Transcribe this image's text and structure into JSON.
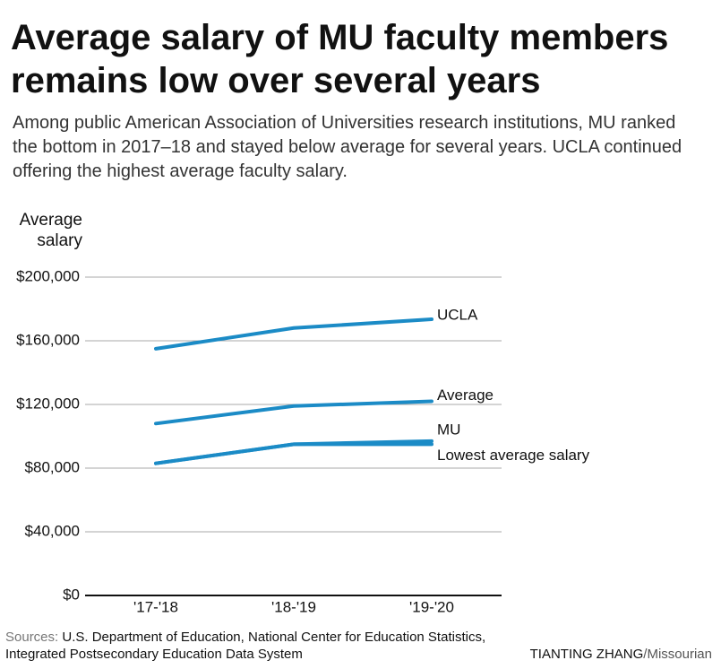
{
  "chart_data": {
    "type": "line",
    "title": "Average salary of MU faculty members remains low over several years",
    "subtitle": "Among public American Association of Universities research institutions, MU ranked the bottom in 2017–18 and stayed below average for several years. UCLA continued offering the highest average faculty salary.",
    "y_label": "Average salary",
    "categories": [
      "'17-'18",
      "'18-'19",
      "'19-'20"
    ],
    "series": [
      {
        "name": "UCLA",
        "color": "#1b8bc6",
        "values": [
          155000,
          168000,
          173500
        ]
      },
      {
        "name": "Average",
        "color": "#1b8bc6",
        "values": [
          108000,
          119000,
          122000
        ]
      },
      {
        "name": "MU",
        "color": "#1b8bc6",
        "values": [
          83000,
          95000,
          97000
        ]
      },
      {
        "name": "Lowest average salary",
        "color": "#1b8bc6",
        "values": [
          83000,
          95000,
          95000
        ]
      }
    ],
    "ylim": [
      0,
      200000
    ],
    "yticks": [
      {
        "value": 0,
        "label": "$0"
      },
      {
        "value": 40000,
        "label": "$40,000"
      },
      {
        "value": 80000,
        "label": "$80,000"
      },
      {
        "value": 120000,
        "label": "$120,000"
      },
      {
        "value": 160000,
        "label": "$160,000"
      },
      {
        "value": 200000,
        "label": "$200,000"
      }
    ],
    "grid": true,
    "source_label": "Sources:",
    "source": "U.S. Department of Education, National Center for Education Statistics, Integrated Postsecondary Education Data System",
    "credit_name": "TIANTING ZHANG",
    "credit_org": "/Missourian"
  }
}
